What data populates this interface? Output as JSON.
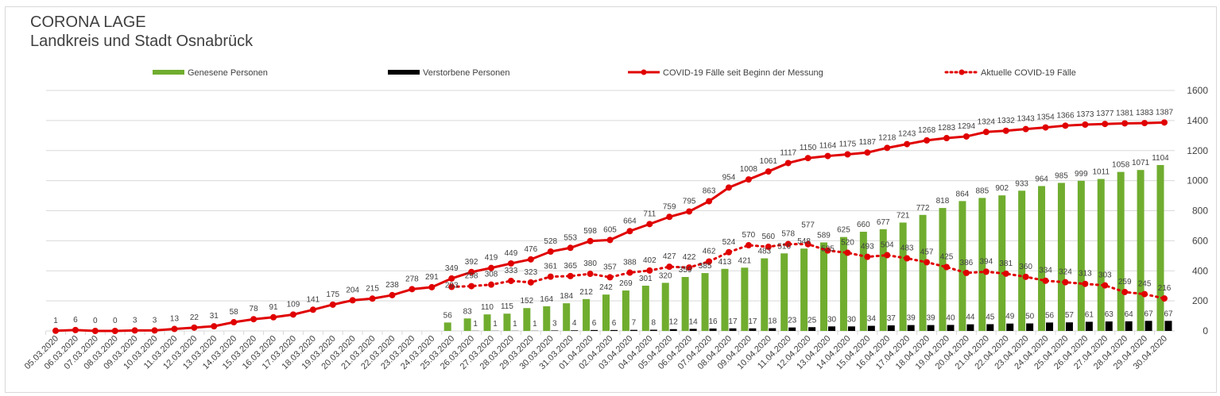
{
  "chart_data": {
    "type": "bar+line",
    "title": "CORONA LAGE",
    "subtitle": "Landkreis und Stadt Osnabrück",
    "legend_position": "top",
    "grid": true,
    "y_axis_side": "right",
    "ylim": [
      0,
      1600
    ],
    "yticks": [
      0,
      200,
      400,
      600,
      800,
      1000,
      1200,
      1400,
      1600
    ],
    "categories": [
      "05.03.2020",
      "06.03.2020",
      "07.03.2020",
      "08.03.2020",
      "09.03.2020",
      "10.03.2020",
      "11.03.2020",
      "12.03.2020",
      "13.03.2020",
      "14.03.2020",
      "15.03.2020",
      "16.03.2020",
      "17.03.2020",
      "18.03.2020",
      "19.03.2020",
      "20.03.2020",
      "21.03.2020",
      "22.03.2020",
      "23.03.2020",
      "24.03.2020",
      "25.03.2020",
      "26.03.2020",
      "27.03.2020",
      "28.03.2020",
      "29.03.2020",
      "30.03.2020",
      "31.03.2020",
      "01.04.2020",
      "02.04.2020",
      "03.04.2020",
      "04.04.2020",
      "05.04.2020",
      "06.04.2020",
      "07.04.2020",
      "08.04.2020",
      "09.04.2020",
      "10.04.2020",
      "11.04.2020",
      "12.04.2020",
      "13.04.2020",
      "14.04.2020",
      "15.04.2020",
      "16.04.2020",
      "17.04.2020",
      "18.04.2020",
      "19.04.2020",
      "20.04.2020",
      "21.04.2020",
      "22.04.2020",
      "23.04.2020",
      "24.04.2020",
      "25.04.2020",
      "26.04.2020",
      "27.04.2020",
      "28.04.2020",
      "29.04.2020",
      "30.04.2020"
    ],
    "series": [
      {
        "name": "Genesene Personen",
        "kind": "bar",
        "color": "#70ad2f",
        "values": [
          null,
          null,
          null,
          null,
          null,
          null,
          null,
          null,
          null,
          null,
          null,
          null,
          null,
          null,
          null,
          null,
          null,
          null,
          null,
          null,
          56,
          83,
          110,
          115,
          152,
          164,
          184,
          212,
          242,
          269,
          301,
          320,
          359,
          385,
          413,
          421,
          483,
          516,
          548,
          589,
          625,
          660,
          677,
          721,
          772,
          818,
          864,
          885,
          902,
          933,
          964,
          985,
          999,
          1011,
          1058,
          1071,
          1104
        ]
      },
      {
        "name": "Verstorbene Personen",
        "kind": "bar",
        "color": "#000000",
        "values": [
          null,
          null,
          null,
          null,
          null,
          null,
          null,
          null,
          null,
          null,
          null,
          null,
          null,
          null,
          null,
          null,
          null,
          null,
          null,
          null,
          null,
          1,
          1,
          1,
          1,
          3,
          4,
          6,
          6,
          7,
          8,
          12,
          14,
          16,
          17,
          17,
          18,
          23,
          25,
          30,
          30,
          34,
          37,
          39,
          39,
          40,
          44,
          45,
          49,
          50,
          56,
          57,
          61,
          63,
          64,
          67,
          67
        ]
      },
      {
        "name": "COVID-19 Fälle seit Beginn der Messung",
        "kind": "line",
        "color": "#e00000",
        "values": [
          1,
          6,
          0,
          0,
          3,
          3,
          13,
          22,
          31,
          58,
          78,
          91,
          109,
          141,
          175,
          204,
          215,
          238,
          278,
          291,
          349,
          392,
          419,
          449,
          476,
          528,
          553,
          598,
          605,
          664,
          711,
          759,
          795,
          863,
          954,
          1008,
          1061,
          1117,
          1150,
          1164,
          1175,
          1187,
          1218,
          1243,
          1268,
          1283,
          1294,
          1324,
          1332,
          1343,
          1354,
          1366,
          1373,
          1377,
          1381,
          1383,
          1387
        ]
      },
      {
        "name": "Aktuelle COVID-19 Fälle",
        "kind": "dotted-line",
        "color": "#e00000",
        "values": [
          null,
          null,
          null,
          null,
          null,
          null,
          null,
          null,
          null,
          null,
          null,
          null,
          null,
          null,
          null,
          null,
          null,
          null,
          null,
          null,
          293,
          298,
          308,
          333,
          323,
          361,
          365,
          380,
          357,
          388,
          402,
          427,
          422,
          462,
          524,
          570,
          560,
          578,
          577,
          535,
          520,
          493,
          504,
          483,
          457,
          425,
          386,
          394,
          381,
          360,
          334,
          324,
          313,
          303,
          259,
          245,
          216
        ]
      }
    ]
  }
}
